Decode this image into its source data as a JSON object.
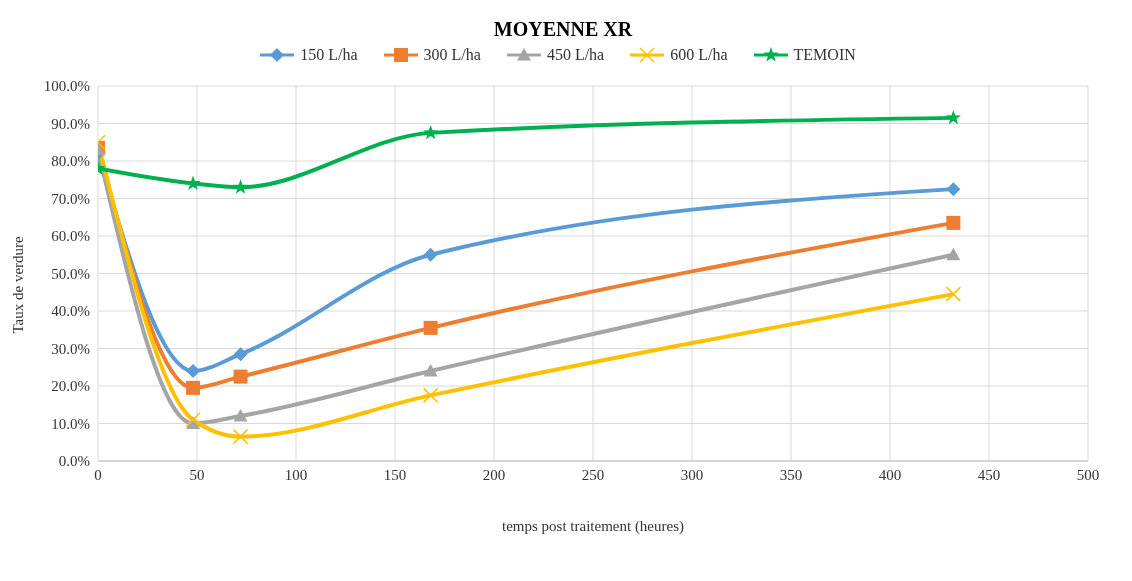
{
  "chart_data": {
    "type": "line",
    "title": "MOYENNE XR",
    "xlabel": "temps post traitement (heures)",
    "ylabel": "Taux de verdure",
    "x": [
      0,
      48,
      72,
      168,
      432
    ],
    "series": [
      {
        "name": "150 L/ha",
        "color": "#5b9bd5",
        "marker": "diamond",
        "values": [
          82,
          24,
          28.5,
          55,
          72.5
        ]
      },
      {
        "name": "300 L/ha",
        "color": "#ed7d31",
        "marker": "square",
        "values": [
          83.5,
          19.5,
          22.5,
          35.5,
          63.5
        ]
      },
      {
        "name": "450 L/ha",
        "color": "#a5a5a5",
        "marker": "triangle",
        "values": [
          83,
          10,
          12,
          24,
          55
        ]
      },
      {
        "name": "600 L/ha",
        "color": "#ffc000",
        "marker": "cross",
        "values": [
          85,
          11,
          6.5,
          17.5,
          44.5
        ]
      },
      {
        "name": "TEMOIN",
        "color": "#00b050",
        "marker": "star",
        "values": [
          78,
          74,
          73,
          87.5,
          91.5
        ]
      }
    ],
    "xlim": [
      0,
      500
    ],
    "xticks": [
      0,
      50,
      100,
      150,
      200,
      250,
      300,
      350,
      400,
      450,
      500
    ],
    "ylim": [
      0,
      100
    ],
    "yticks": [
      {
        "value": 0,
        "label": "0.0%"
      },
      {
        "value": 10,
        "label": "10.0%"
      },
      {
        "value": 20,
        "label": "20.0%"
      },
      {
        "value": 30,
        "label": "30.0%"
      },
      {
        "value": 40,
        "label": "40.0%"
      },
      {
        "value": 50,
        "label": "50.0%"
      },
      {
        "value": 60,
        "label": "60.0%"
      },
      {
        "value": 70,
        "label": "70.0%"
      },
      {
        "value": 80,
        "label": "80.0%"
      },
      {
        "value": 90,
        "label": "90.0%"
      },
      {
        "value": 100,
        "label": "100.0%"
      }
    ],
    "grid": true,
    "legend": "top"
  }
}
